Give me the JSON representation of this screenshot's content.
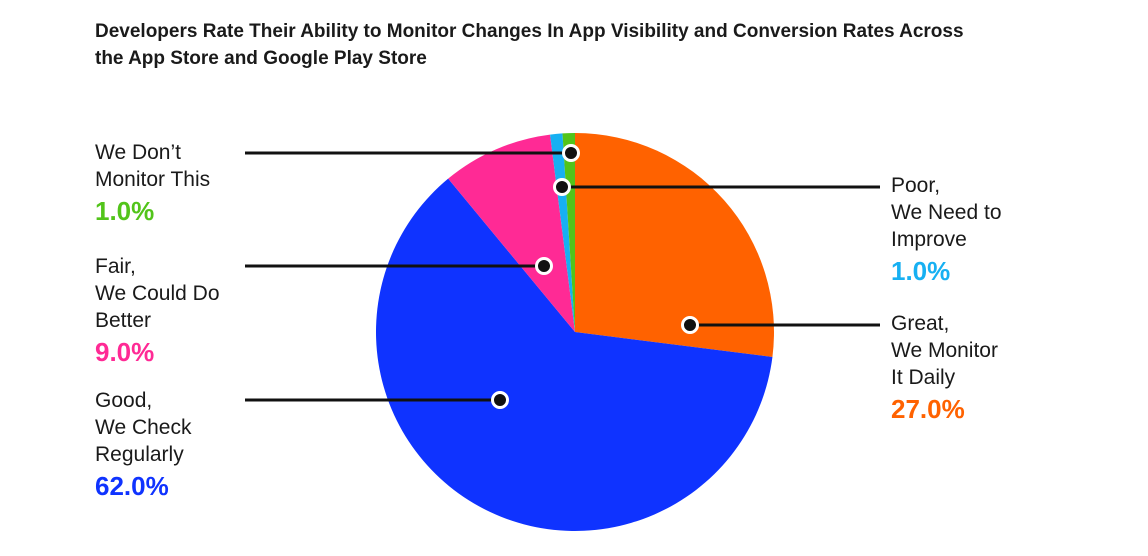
{
  "chart_data": {
    "type": "pie",
    "title_lines": [
      "Developers Rate Their Ability to Monitor Changes In App Visibility and Conversion Rates Across",
      "the App Store and Google Play Store"
    ],
    "slices": [
      {
        "key": "great",
        "label_lines": [
          "Great,",
          "We Monitor",
          "It Daily"
        ],
        "value": 27.0,
        "value_label": "27.0%",
        "color": "#ff6200"
      },
      {
        "key": "good",
        "label_lines": [
          "Good,",
          "We Check",
          "Regularly"
        ],
        "value": 62.0,
        "value_label": "62.0%",
        "color": "#0f33ff"
      },
      {
        "key": "fair",
        "label_lines": [
          "Fair,",
          "We Could Do",
          "Better"
        ],
        "value": 9.0,
        "value_label": "9.0%",
        "color": "#ff2a95"
      },
      {
        "key": "poor",
        "label_lines": [
          "Poor,",
          "We Need to",
          "Improve"
        ],
        "value": 1.0,
        "value_label": "1.0%",
        "color": "#17b0f2"
      },
      {
        "key": "dont",
        "label_lines": [
          "We Don’t",
          "Monitor This"
        ],
        "value": 1.0,
        "value_label": "1.0%",
        "color": "#52c41a"
      }
    ]
  }
}
